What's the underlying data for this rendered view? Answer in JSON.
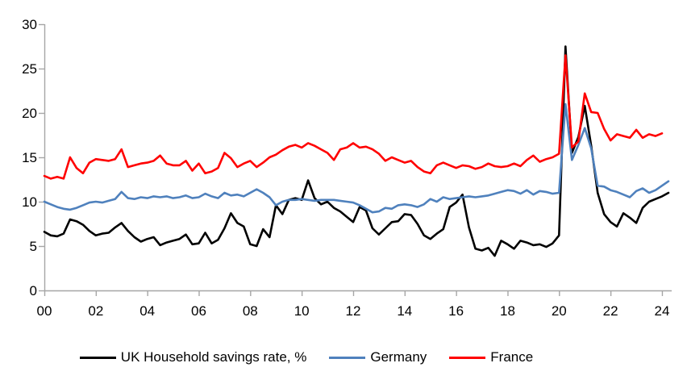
{
  "chart_data": {
    "type": "line",
    "title": "",
    "xlabel": "",
    "ylabel": "",
    "x_range": [
      "2000Q1",
      "2024Q2"
    ],
    "points_per_year": 4,
    "grid": false,
    "x_axis": {
      "tick_labels": [
        "00",
        "02",
        "04",
        "06",
        "08",
        "10",
        "12",
        "14",
        "16",
        "18",
        "20",
        "22",
        "24"
      ]
    },
    "y_axis": {
      "min": 0,
      "max": 30,
      "ticks": [
        0,
        5,
        10,
        15,
        20,
        25,
        30
      ]
    },
    "colors": {
      "axis": "#a6a6a6",
      "text": "#000000"
    },
    "legend": {
      "position": "bottom"
    },
    "series": [
      {
        "id": "uk",
        "name": "UK Household savings rate, %",
        "color": "#000000",
        "values": [
          6.6,
          6.2,
          6.1,
          6.4,
          8.0,
          7.8,
          7.4,
          6.7,
          6.2,
          6.4,
          6.5,
          7.1,
          7.6,
          6.7,
          6.0,
          5.5,
          5.8,
          6.0,
          5.1,
          5.4,
          5.6,
          5.8,
          6.3,
          5.2,
          5.3,
          6.5,
          5.3,
          5.7,
          7.0,
          8.7,
          7.6,
          7.2,
          5.2,
          5.0,
          6.9,
          6.0,
          9.6,
          8.6,
          10.2,
          10.4,
          10.2,
          12.4,
          10.4,
          9.7,
          10.0,
          9.3,
          8.9,
          8.3,
          7.7,
          9.4,
          9.0,
          7.0,
          6.3,
          7.0,
          7.7,
          7.8,
          8.6,
          8.5,
          7.5,
          6.2,
          5.8,
          6.4,
          6.9,
          9.4,
          9.9,
          10.8,
          7.1,
          4.7,
          4.5,
          4.8,
          3.9,
          5.6,
          5.2,
          4.7,
          5.6,
          5.4,
          5.1,
          5.2,
          4.9,
          5.3,
          6.2,
          27.5,
          15.5,
          17.3,
          20.8,
          16.3,
          11.0,
          8.6,
          7.7,
          7.2,
          8.7,
          8.2,
          7.6,
          9.3,
          10.0,
          10.3,
          10.6,
          11.0
        ]
      },
      {
        "id": "germany",
        "name": "Germany",
        "color": "#4f81bd",
        "values": [
          10.0,
          9.7,
          9.4,
          9.2,
          9.1,
          9.3,
          9.6,
          9.9,
          10.0,
          9.9,
          10.1,
          10.3,
          11.1,
          10.4,
          10.3,
          10.5,
          10.4,
          10.6,
          10.5,
          10.6,
          10.4,
          10.5,
          10.7,
          10.4,
          10.5,
          10.9,
          10.6,
          10.4,
          11.0,
          10.7,
          10.8,
          10.6,
          11.0,
          11.4,
          11.0,
          10.5,
          9.6,
          10.0,
          10.2,
          10.2,
          10.3,
          10.2,
          10.1,
          10.2,
          10.2,
          10.2,
          10.1,
          10.0,
          9.9,
          9.6,
          9.2,
          8.8,
          8.9,
          9.3,
          9.2,
          9.6,
          9.7,
          9.6,
          9.4,
          9.7,
          10.3,
          10.0,
          10.5,
          10.3,
          10.4,
          10.5,
          10.6,
          10.5,
          10.6,
          10.7,
          10.9,
          11.1,
          11.3,
          11.2,
          10.9,
          11.3,
          10.8,
          11.2,
          11.1,
          10.9,
          11.0,
          21.0,
          14.7,
          16.4,
          18.3,
          16.0,
          11.8,
          11.7,
          11.3,
          11.1,
          10.8,
          10.5,
          11.2,
          11.5,
          11.0,
          11.3,
          11.8,
          12.3
        ]
      },
      {
        "id": "france",
        "name": "France",
        "color": "#ff0000",
        "values": [
          12.9,
          12.6,
          12.8,
          12.6,
          15.0,
          13.8,
          13.2,
          14.4,
          14.8,
          14.7,
          14.6,
          14.8,
          15.9,
          13.9,
          14.1,
          14.3,
          14.4,
          14.6,
          15.2,
          14.3,
          14.1,
          14.1,
          14.6,
          13.5,
          14.3,
          13.2,
          13.4,
          13.8,
          15.5,
          14.9,
          13.9,
          14.3,
          14.6,
          13.9,
          14.4,
          15.0,
          15.3,
          15.8,
          16.2,
          16.4,
          16.1,
          16.6,
          16.3,
          15.9,
          15.5,
          14.7,
          15.9,
          16.1,
          16.6,
          16.1,
          16.2,
          15.9,
          15.4,
          14.6,
          15.0,
          14.7,
          14.4,
          14.6,
          13.9,
          13.4,
          13.2,
          14.1,
          14.4,
          14.1,
          13.8,
          14.1,
          14.0,
          13.7,
          13.9,
          14.3,
          14.0,
          13.9,
          14.0,
          14.3,
          14.0,
          14.7,
          15.2,
          14.5,
          14.8,
          15.0,
          15.4,
          26.5,
          16.1,
          16.8,
          22.2,
          20.1,
          20.0,
          18.2,
          16.9,
          17.6,
          17.4,
          17.2,
          18.1,
          17.2,
          17.6,
          17.4,
          17.7,
          null
        ]
      }
    ]
  }
}
